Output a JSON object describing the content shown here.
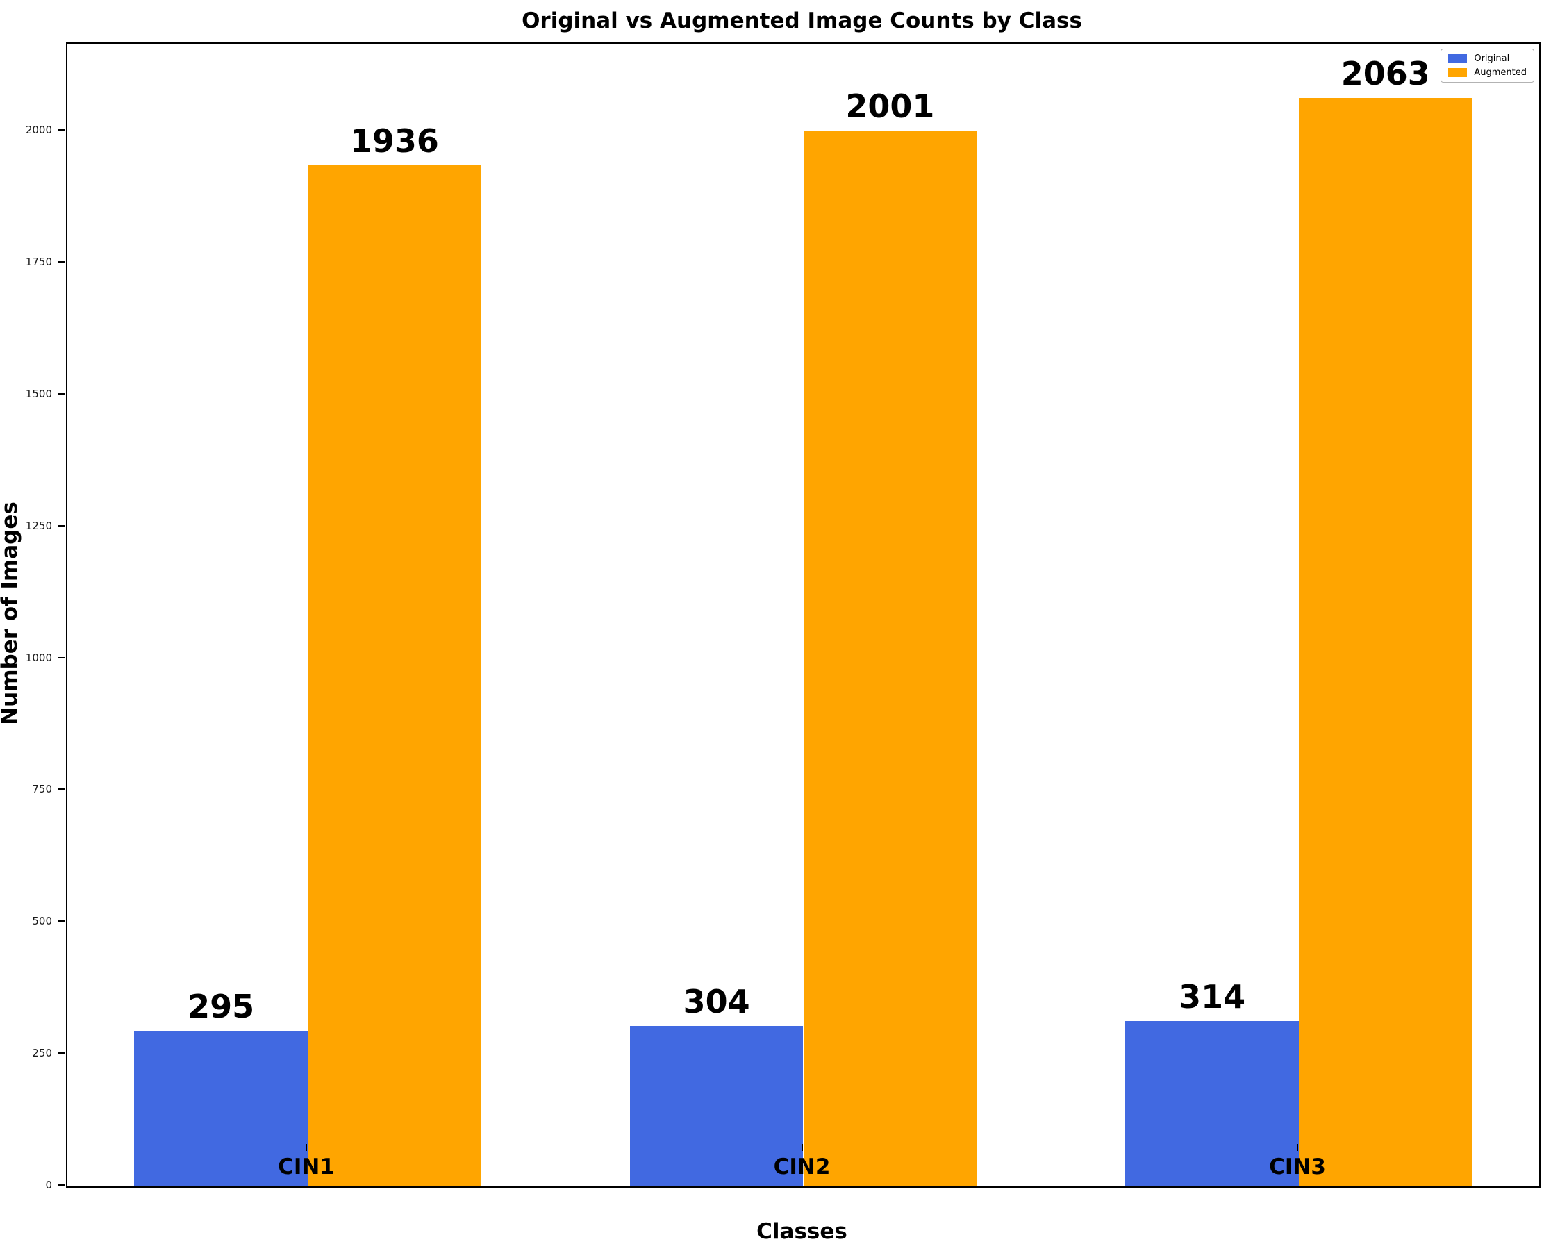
{
  "chart_data": {
    "type": "bar",
    "title": "Original vs Augmented Image Counts by Class",
    "xlabel": "Classes",
    "ylabel": "Number of Images",
    "categories": [
      "CIN1",
      "CIN2",
      "CIN3"
    ],
    "series": [
      {
        "name": "Original",
        "color": "#4169E1",
        "values": [
          295,
          304,
          314
        ]
      },
      {
        "name": "Augmented",
        "color": "#FFA500",
        "values": [
          1936,
          2001,
          2063
        ]
      }
    ],
    "y_ticks": [
      0,
      250,
      500,
      750,
      1000,
      1250,
      1500,
      1750,
      2000
    ],
    "ylim": [
      0,
      2166
    ],
    "xlim": [
      -0.485,
      2.485
    ],
    "bar_width": 0.35,
    "value_labels": [
      295,
      1936,
      304,
      2001,
      314,
      2063
    ],
    "legend_position": "upper right",
    "grid": false,
    "colors": {
      "axis": "#000000",
      "text": "#000000",
      "legend_border": "#b3b3b3"
    }
  }
}
